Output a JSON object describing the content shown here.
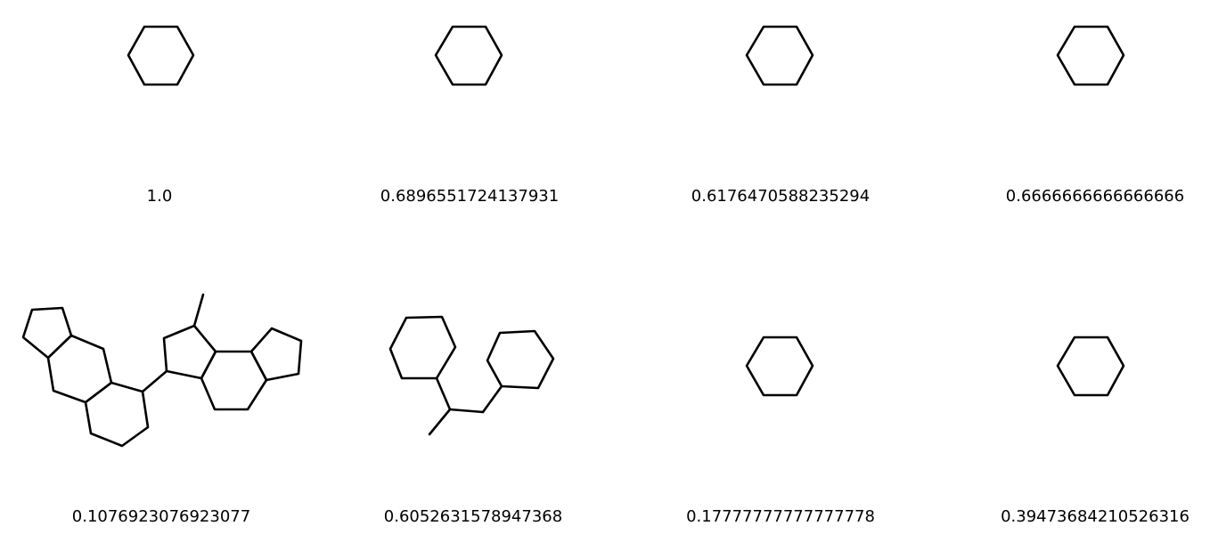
{
  "grid": {
    "columns": 4,
    "rows": 2,
    "cells": [
      {
        "structure": "hexagon-ring-icon",
        "score": "1.0"
      },
      {
        "structure": "hexagon-ring-icon",
        "score": "0.6896551724137931"
      },
      {
        "structure": "hexagon-ring-icon",
        "score": "0.6176470588235294"
      },
      {
        "structure": "hexagon-ring-icon",
        "score": "0.6666666666666666"
      },
      {
        "structure": "fused-polycyclic-structure-icon",
        "score": "0.1076923076923077"
      },
      {
        "structure": "dicyclohexyl-propane-structure-icon",
        "score": "0.6052631578947368"
      },
      {
        "structure": "hexagon-ring-icon",
        "score": "0.17777777777777778"
      },
      {
        "structure": "hexagon-ring-icon",
        "score": "0.39473684210526316"
      }
    ]
  }
}
